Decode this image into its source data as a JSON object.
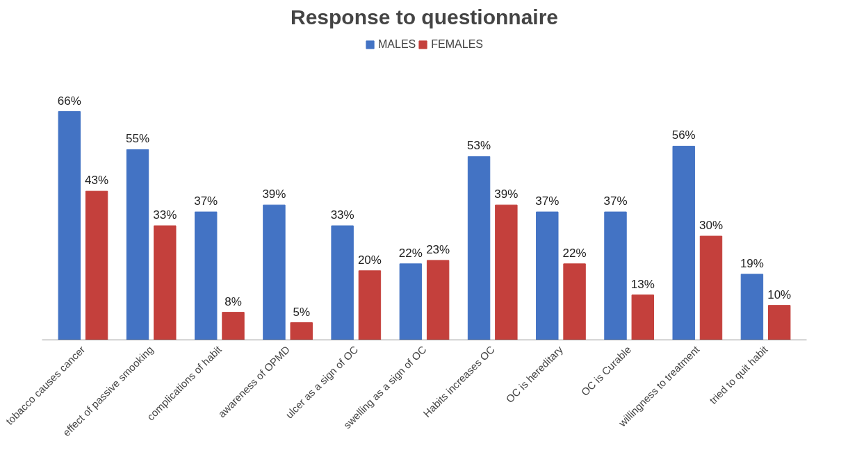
{
  "chart_data": {
    "type": "bar",
    "title": "Response to questionnaire",
    "categories": [
      "tobacco causes cancer",
      "effect of passive smooking",
      "complications of habit",
      "awareness of OPMD",
      "ulcer as a sign of OC",
      "swelling as a sign of OC",
      "Habits increases OC",
      "OC is hereditary",
      "OC is Curable",
      "willingness to treatment",
      "tried to quit habit"
    ],
    "series": [
      {
        "name": "MALES",
        "color": "#4373c4",
        "values": [
          66,
          55,
          37,
          39,
          33,
          22,
          53,
          37,
          37,
          56,
          19
        ],
        "value_labels": [
          "66%",
          "55%",
          "37%",
          "39%",
          "33%",
          "22%",
          "53%",
          "37%",
          "37%",
          "56%",
          "19%"
        ]
      },
      {
        "name": "FEMALES",
        "color": "#c4403c",
        "values": [
          43,
          33,
          8,
          5,
          20,
          23,
          39,
          22,
          13,
          30,
          10
        ],
        "value_labels": [
          "43%",
          "33%",
          "8%",
          "5%",
          "20%",
          "23%",
          "39%",
          "22%",
          "13%",
          "30%",
          "10%"
        ]
      }
    ],
    "legend": "top"
  }
}
